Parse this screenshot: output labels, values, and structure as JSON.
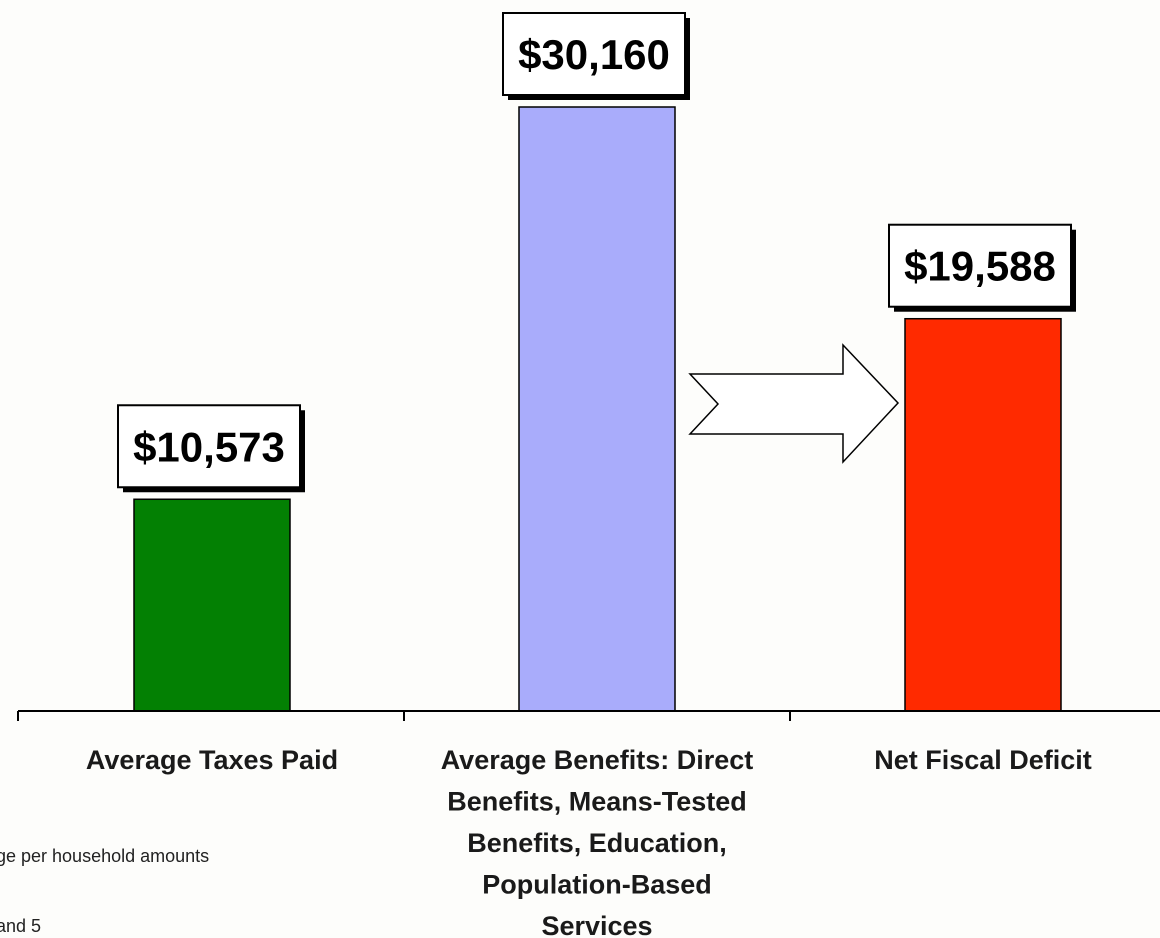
{
  "chart_data": {
    "type": "bar",
    "categories": [
      [
        "Average Taxes Paid"
      ],
      [
        "Average Benefits: Direct",
        "Benefits, Means-Tested",
        "Benefits, Education,",
        "Population-Based",
        "Services"
      ],
      [
        "Net Fiscal Deficit"
      ]
    ],
    "values": [
      10573,
      30160,
      19588
    ],
    "value_labels": [
      "$10,573",
      "$30,160",
      "$19,588"
    ],
    "colors": [
      "#038003",
      "#a9acfb",
      "#ff2a00"
    ],
    "ylim": [
      0,
      30160
    ],
    "grid": false,
    "annotations": {
      "arrow": "benefits-to-deficit"
    }
  },
  "footnotes": [
    "ge per household amounts",
    "and 5"
  ]
}
